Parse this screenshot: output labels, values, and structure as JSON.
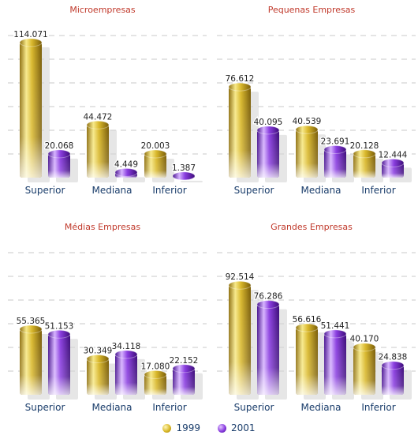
{
  "colors": {
    "1999": "#d4b52a",
    "2001": "#8b3fe0",
    "title": "#c0392b",
    "axis_label": "#1a3d6b"
  },
  "legend": [
    {
      "name": "1999",
      "color": "#d4b52a"
    },
    {
      "name": "2001",
      "color": "#8b3fe0"
    }
  ],
  "chart_data": [
    {
      "type": "bar",
      "title": "Microempresas",
      "categories": [
        "Superior",
        "Mediana",
        "Inferior"
      ],
      "series": [
        {
          "name": "1999",
          "values": [
            114.071,
            44.472,
            20.003
          ],
          "labels": [
            "114.071",
            "44.472",
            "20.003"
          ]
        },
        {
          "name": "2001",
          "values": [
            20.068,
            4.449,
            1.387
          ],
          "labels": [
            "20.068",
            "4.449",
            "1.387"
          ]
        }
      ],
      "ylim": [
        0,
        120
      ],
      "grid": true,
      "legend_position": "bottom"
    },
    {
      "type": "bar",
      "title": "Pequenas Empresas",
      "categories": [
        "Superior",
        "Mediana",
        "Inferior"
      ],
      "series": [
        {
          "name": "1999",
          "values": [
            76.612,
            40.539,
            20.128
          ],
          "labels": [
            "76.612",
            "40.539",
            "20.128"
          ]
        },
        {
          "name": "2001",
          "values": [
            40.095,
            23.691,
            12.444
          ],
          "labels": [
            "40.095",
            "23.691",
            "12.444"
          ]
        }
      ],
      "ylim": [
        0,
        120
      ],
      "grid": true,
      "legend_position": "bottom"
    },
    {
      "type": "bar",
      "title": "Médias Empresas",
      "categories": [
        "Superior",
        "Mediana",
        "Inferior"
      ],
      "series": [
        {
          "name": "1999",
          "values": [
            55.365,
            30.349,
            17.08
          ],
          "labels": [
            "55.365",
            "30.349",
            "17.080"
          ]
        },
        {
          "name": "2001",
          "values": [
            51.153,
            34.118,
            22.152
          ],
          "labels": [
            "51.153",
            "34.118",
            "22.152"
          ]
        }
      ],
      "ylim": [
        0,
        120
      ],
      "grid": true,
      "legend_position": "bottom"
    },
    {
      "type": "bar",
      "title": "Grandes Empresas",
      "categories": [
        "Superior",
        "Mediana",
        "Inferior"
      ],
      "series": [
        {
          "name": "1999",
          "values": [
            92.514,
            56.616,
            40.17
          ],
          "labels": [
            "92.514",
            "56.616",
            "40.170"
          ]
        },
        {
          "name": "2001",
          "values": [
            76.286,
            51.441,
            24.838
          ],
          "labels": [
            "76.286",
            "51.441",
            "24.838"
          ]
        }
      ],
      "ylim": [
        0,
        120
      ],
      "grid": true,
      "legend_position": "bottom"
    }
  ]
}
